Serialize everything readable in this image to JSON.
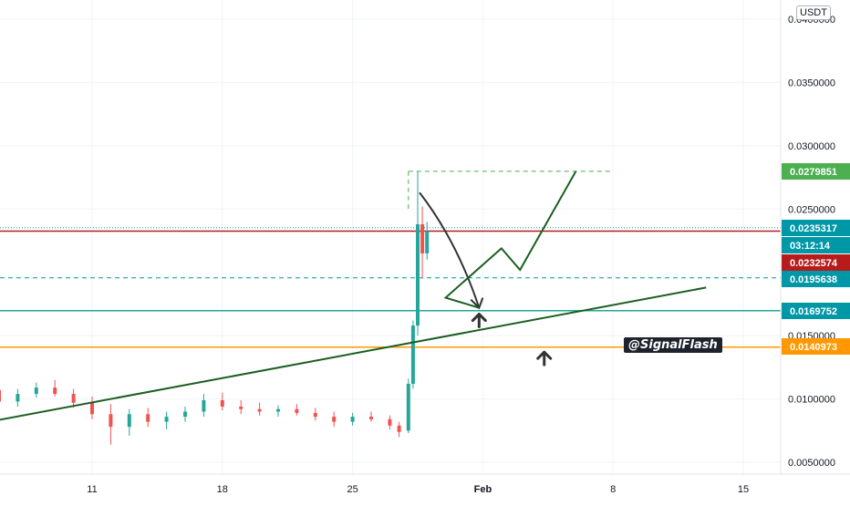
{
  "chart_data": {
    "type": "candlestick",
    "currency": "USDT",
    "watermark": "@SignalFlash",
    "x_axis": {
      "ticks": [
        {
          "label": "11",
          "date": "2023-01-11",
          "bold": false
        },
        {
          "label": "18",
          "date": "2023-01-18",
          "bold": false
        },
        {
          "label": "25",
          "date": "2023-01-25",
          "bold": false
        },
        {
          "label": "Feb",
          "date": "2023-02-01",
          "bold": true
        },
        {
          "label": "8",
          "date": "2023-02-08",
          "bold": false
        },
        {
          "label": "15",
          "date": "2023-02-15",
          "bold": false
        }
      ]
    },
    "y_axis": {
      "range": [
        0.003,
        0.041
      ],
      "ticks": [
        "0.0050000",
        "0.0100000",
        "0.0150000",
        "0.0250000",
        "0.0300000",
        "0.0350000",
        "0.0400000"
      ]
    },
    "price_tags": [
      {
        "label": "0.0279851",
        "value": 0.0279851,
        "color": "#4caf50"
      },
      {
        "label": "0.0235317",
        "value": 0.0235317,
        "color": "#0097a7"
      },
      {
        "label": "03:12:14",
        "value": 0.022,
        "color": "#0097a7"
      },
      {
        "label": "0.0232574",
        "value": 0.0232574,
        "color": "#b71c1c"
      },
      {
        "label": "0.0195638",
        "value": 0.0195638,
        "color": "#0097a7"
      },
      {
        "label": "0.0169752",
        "value": 0.0169752,
        "color": "#0097a7"
      },
      {
        "label": "0.0140973",
        "value": 0.0140973,
        "color": "#ff9800"
      }
    ],
    "horizontal_lines": [
      {
        "value": 0.0279851,
        "color": "#4caf50",
        "style": "dashed",
        "from": "2023-01-28",
        "to": "2023-02-08"
      },
      {
        "value": 0.0235317,
        "color": "#0097a7",
        "style": "dotted"
      },
      {
        "value": 0.0232574,
        "color": "#b71c1c",
        "style": "solid"
      },
      {
        "value": 0.0195638,
        "color": "#0097a7",
        "style": "dashed"
      },
      {
        "value": 0.0169752,
        "color": "#26a69a",
        "style": "solid"
      },
      {
        "value": 0.0140973,
        "color": "#ff9800",
        "style": "solid"
      }
    ],
    "trendline": {
      "from": [
        "2023-01-04",
        0.0078
      ],
      "to": [
        "2023-02-13",
        0.0188
      ],
      "color": "#1b5e20"
    },
    "projection_path": {
      "points": [
        [
          "2023-01-30",
          0.018
        ],
        [
          "2023-02-02",
          0.0219
        ],
        [
          "2023-02-03",
          0.0202
        ],
        [
          "2023-02-06",
          0.0279851
        ]
      ],
      "color": "#1b5e20"
    },
    "curved_arrow": {
      "from": [
        "2023-01-28.6",
        0.0263
      ],
      "via": [
        "2023-01-30.6",
        0.0225
      ],
      "to": [
        "2023-01-31.8",
        0.0172
      ],
      "color": "#333333"
    },
    "up_arrows": [
      {
        "date": "2023-01-31.8",
        "value": 0.0162
      },
      {
        "date": "2023-02-04.3",
        "value": 0.0132
      }
    ],
    "candles": [
      {
        "date": "2023-01-04",
        "o": 0.0108,
        "h": 0.0112,
        "l": 0.0101,
        "c": 0.0105
      },
      {
        "date": "2023-01-05",
        "o": 0.0105,
        "h": 0.011,
        "l": 0.0099,
        "c": 0.0107
      },
      {
        "date": "2023-01-06",
        "o": 0.0107,
        "h": 0.0111,
        "l": 0.0095,
        "c": 0.0098
      },
      {
        "date": "2023-01-07",
        "o": 0.0098,
        "h": 0.0108,
        "l": 0.0094,
        "c": 0.0104
      },
      {
        "date": "2023-01-08",
        "o": 0.0104,
        "h": 0.0113,
        "l": 0.0101,
        "c": 0.0109
      },
      {
        "date": "2023-01-09",
        "o": 0.0109,
        "h": 0.0115,
        "l": 0.0102,
        "c": 0.0104
      },
      {
        "date": "2023-01-10",
        "o": 0.0104,
        "h": 0.0108,
        "l": 0.0093,
        "c": 0.0097
      },
      {
        "date": "2023-01-11",
        "o": 0.0097,
        "h": 0.0102,
        "l": 0.0084,
        "c": 0.0088
      },
      {
        "date": "2023-01-12",
        "o": 0.0088,
        "h": 0.0096,
        "l": 0.0064,
        "c": 0.0078
      },
      {
        "date": "2023-01-13",
        "o": 0.0078,
        "h": 0.0092,
        "l": 0.0071,
        "c": 0.0088
      },
      {
        "date": "2023-01-14",
        "o": 0.0088,
        "h": 0.0093,
        "l": 0.0078,
        "c": 0.0082
      },
      {
        "date": "2023-01-15",
        "o": 0.0082,
        "h": 0.009,
        "l": 0.0076,
        "c": 0.0086
      },
      {
        "date": "2023-01-16",
        "o": 0.0086,
        "h": 0.0094,
        "l": 0.0082,
        "c": 0.009
      },
      {
        "date": "2023-01-17",
        "o": 0.009,
        "h": 0.0104,
        "l": 0.0086,
        "c": 0.0099
      },
      {
        "date": "2023-01-18",
        "o": 0.0099,
        "h": 0.0105,
        "l": 0.0091,
        "c": 0.0094
      },
      {
        "date": "2023-01-19",
        "o": 0.0094,
        "h": 0.0099,
        "l": 0.0088,
        "c": 0.0092
      },
      {
        "date": "2023-01-20",
        "o": 0.0092,
        "h": 0.0097,
        "l": 0.0087,
        "c": 0.009
      },
      {
        "date": "2023-01-21",
        "o": 0.009,
        "h": 0.0095,
        "l": 0.0086,
        "c": 0.0092
      },
      {
        "date": "2023-01-22",
        "o": 0.0092,
        "h": 0.0096,
        "l": 0.0087,
        "c": 0.0089
      },
      {
        "date": "2023-01-23",
        "o": 0.0089,
        "h": 0.0093,
        "l": 0.0083,
        "c": 0.0086
      },
      {
        "date": "2023-01-24",
        "o": 0.0086,
        "h": 0.009,
        "l": 0.0078,
        "c": 0.0082
      },
      {
        "date": "2023-01-25",
        "o": 0.0082,
        "h": 0.0089,
        "l": 0.0079,
        "c": 0.0086
      },
      {
        "date": "2023-01-26",
        "o": 0.0086,
        "h": 0.009,
        "l": 0.0082,
        "c": 0.0084
      },
      {
        "date": "2023-01-27",
        "o": 0.0084,
        "h": 0.0087,
        "l": 0.0076,
        "c": 0.0079
      },
      {
        "date": "2023-01-27.5",
        "o": 0.0079,
        "h": 0.0082,
        "l": 0.007,
        "c": 0.0074
      },
      {
        "date": "2023-01-28",
        "o": 0.0075,
        "h": 0.0116,
        "l": 0.0073,
        "c": 0.0112
      },
      {
        "date": "2023-01-28.25",
        "o": 0.0112,
        "h": 0.0162,
        "l": 0.0108,
        "c": 0.0158
      },
      {
        "date": "2023-01-28.5",
        "o": 0.0158,
        "h": 0.0279851,
        "l": 0.015,
        "c": 0.0238
      },
      {
        "date": "2023-01-28.75",
        "o": 0.0238,
        "h": 0.0252,
        "l": 0.0195,
        "c": 0.0215
      },
      {
        "date": "2023-01-29",
        "o": 0.0215,
        "h": 0.024,
        "l": 0.021,
        "c": 0.0232574
      }
    ]
  }
}
